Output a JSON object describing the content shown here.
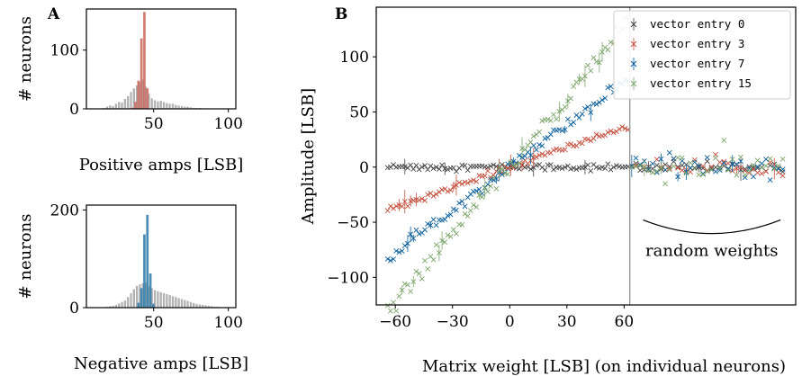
{
  "colors": {
    "positive_hist": "#c9655a",
    "negative_hist": "#2a7aa8",
    "background_hist": "#aaaaaa",
    "series": [
      "#444444",
      "#c44e3c",
      "#0b5f9c",
      "#7ea56c"
    ]
  },
  "chart_data": [
    {
      "panel": "A",
      "type": "bar",
      "subtype": "histogram",
      "xlabel": "Positive amps [LSB]",
      "ylabel": "# neurons",
      "xlim": [
        5,
        105
      ],
      "ylim": [
        0,
        170
      ],
      "xticks": [
        "50",
        "100"
      ],
      "yticks": [
        "0",
        "100"
      ],
      "bin_width": 2,
      "highlight": {
        "bin_centers": [
          36,
          38,
          40,
          42,
          44,
          46
        ],
        "values": [
          2,
          12,
          48,
          120,
          165,
          35
        ]
      },
      "background": {
        "bin_centers": [
          15,
          17,
          19,
          21,
          23,
          25,
          27,
          29,
          31,
          33,
          35,
          37,
          39,
          41,
          43,
          45,
          47,
          49,
          51,
          53,
          55,
          57,
          59,
          61,
          63,
          65,
          67,
          69,
          71,
          73,
          75,
          77,
          79,
          81,
          83,
          85
        ],
        "values": [
          1,
          2,
          4,
          6,
          5,
          9,
          12,
          11,
          17,
          22,
          29,
          35,
          40,
          46,
          50,
          38,
          26,
          18,
          15,
          13,
          14,
          12,
          10,
          9,
          9,
          7,
          6,
          5,
          4,
          4,
          3,
          2,
          2,
          2,
          1,
          1
        ]
      }
    },
    {
      "panel": "A-lower",
      "type": "bar",
      "subtype": "histogram",
      "xlabel": "Negative amps [LSB]",
      "ylabel": "# neurons",
      "xlim": [
        5,
        105
      ],
      "ylim": [
        0,
        210
      ],
      "xticks": [
        "50",
        "100"
      ],
      "yticks": [
        "0",
        "200"
      ],
      "bin_width": 2,
      "highlight": {
        "bin_centers": [
          40,
          42,
          44,
          46,
          48,
          50
        ],
        "values": [
          10,
          40,
          150,
          190,
          70,
          8
        ]
      },
      "background": {
        "bin_centers": [
          17,
          19,
          21,
          23,
          25,
          27,
          29,
          31,
          33,
          35,
          37,
          39,
          41,
          43,
          45,
          47,
          49,
          51,
          53,
          55,
          57,
          59,
          61,
          63,
          65,
          67,
          69,
          71,
          73,
          75,
          77,
          79,
          81,
          83,
          85,
          87,
          89,
          91,
          93,
          95
        ],
        "values": [
          1,
          2,
          3,
          4,
          6,
          9,
          12,
          15,
          22,
          30,
          38,
          45,
          48,
          50,
          52,
          44,
          40,
          36,
          34,
          32,
          30,
          28,
          26,
          24,
          22,
          20,
          18,
          16,
          14,
          12,
          10,
          8,
          7,
          6,
          5,
          4,
          3,
          2,
          2,
          1
        ]
      }
    },
    {
      "panel": "B",
      "type": "scatter",
      "xlabel": "Matrix weight [LSB] (on individual neurons)",
      "ylabel": "Amplitude [LSB]",
      "xlim": [
        -70,
        150
      ],
      "ylim": [
        -125,
        145
      ],
      "xticks": [
        "−60",
        "−30",
        "0",
        "30",
        "60"
      ],
      "yticks": [
        "−100",
        "−50",
        "0",
        "50",
        "100"
      ],
      "legend_position": "top-right",
      "separator_x": 63,
      "annotation": "random weights",
      "series": [
        {
          "name": "vector entry 0",
          "gain": 0.0,
          "curve": 0.0,
          "noise": 1.5
        },
        {
          "name": "vector entry 3",
          "gain": 0.6,
          "curve": 0.0,
          "noise": 1.5
        },
        {
          "name": "vector entry 7",
          "gain": 1.25,
          "curve": 0.05,
          "noise": 2.5
        },
        {
          "name": "vector entry 15",
          "gain": 1.95,
          "curve": 0.12,
          "noise": 3.5
        }
      ]
    }
  ]
}
